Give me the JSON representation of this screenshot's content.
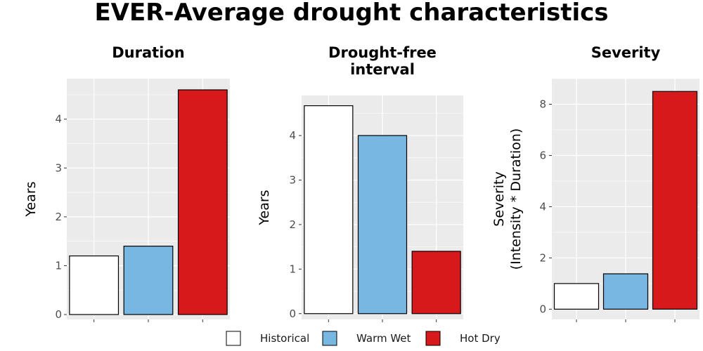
{
  "title": "EVER-Average drought characteristics",
  "legend": {
    "entries": [
      {
        "label": "Historical",
        "color": "#ffffff"
      },
      {
        "label": "Warm Wet",
        "color": "#77b7e2"
      },
      {
        "label": "Hot Dry",
        "color": "#d7191c"
      }
    ]
  },
  "colors": {
    "panel_background": "#ebebeb",
    "grid": "#ffffff",
    "bar_outline": "#000000"
  },
  "chart_data": [
    {
      "type": "bar",
      "title": [
        "Duration"
      ],
      "xlabel": "",
      "ylabel": [
        "Years"
      ],
      "categories": [
        "Historical",
        "Warm Wet",
        "Hot Dry"
      ],
      "values": [
        1.2,
        1.4,
        4.6
      ],
      "ylim": [
        -0.1,
        4.83
      ],
      "yticks": [
        0,
        1,
        2,
        3,
        4
      ],
      "grid": true
    },
    {
      "type": "bar",
      "title": [
        "Drought-free",
        "interval"
      ],
      "xlabel": "",
      "ylabel": [
        "Years"
      ],
      "categories": [
        "Historical",
        "Warm Wet",
        "Hot Dry"
      ],
      "values": [
        4.67,
        4.0,
        1.4
      ],
      "ylim": [
        -0.13,
        4.9
      ],
      "yticks": [
        0,
        1,
        2,
        3,
        4
      ],
      "grid": true
    },
    {
      "type": "bar",
      "title": [
        "Severity"
      ],
      "xlabel": "",
      "ylabel": [
        "Severity",
        "(Intensity * Duration)"
      ],
      "categories": [
        "Historical",
        "Warm Wet",
        "Hot Dry"
      ],
      "values": [
        1.0,
        1.38,
        8.5
      ],
      "ylim": [
        -0.4,
        9.0
      ],
      "yticks": [
        0,
        2,
        4,
        6,
        8
      ],
      "grid": true
    }
  ]
}
